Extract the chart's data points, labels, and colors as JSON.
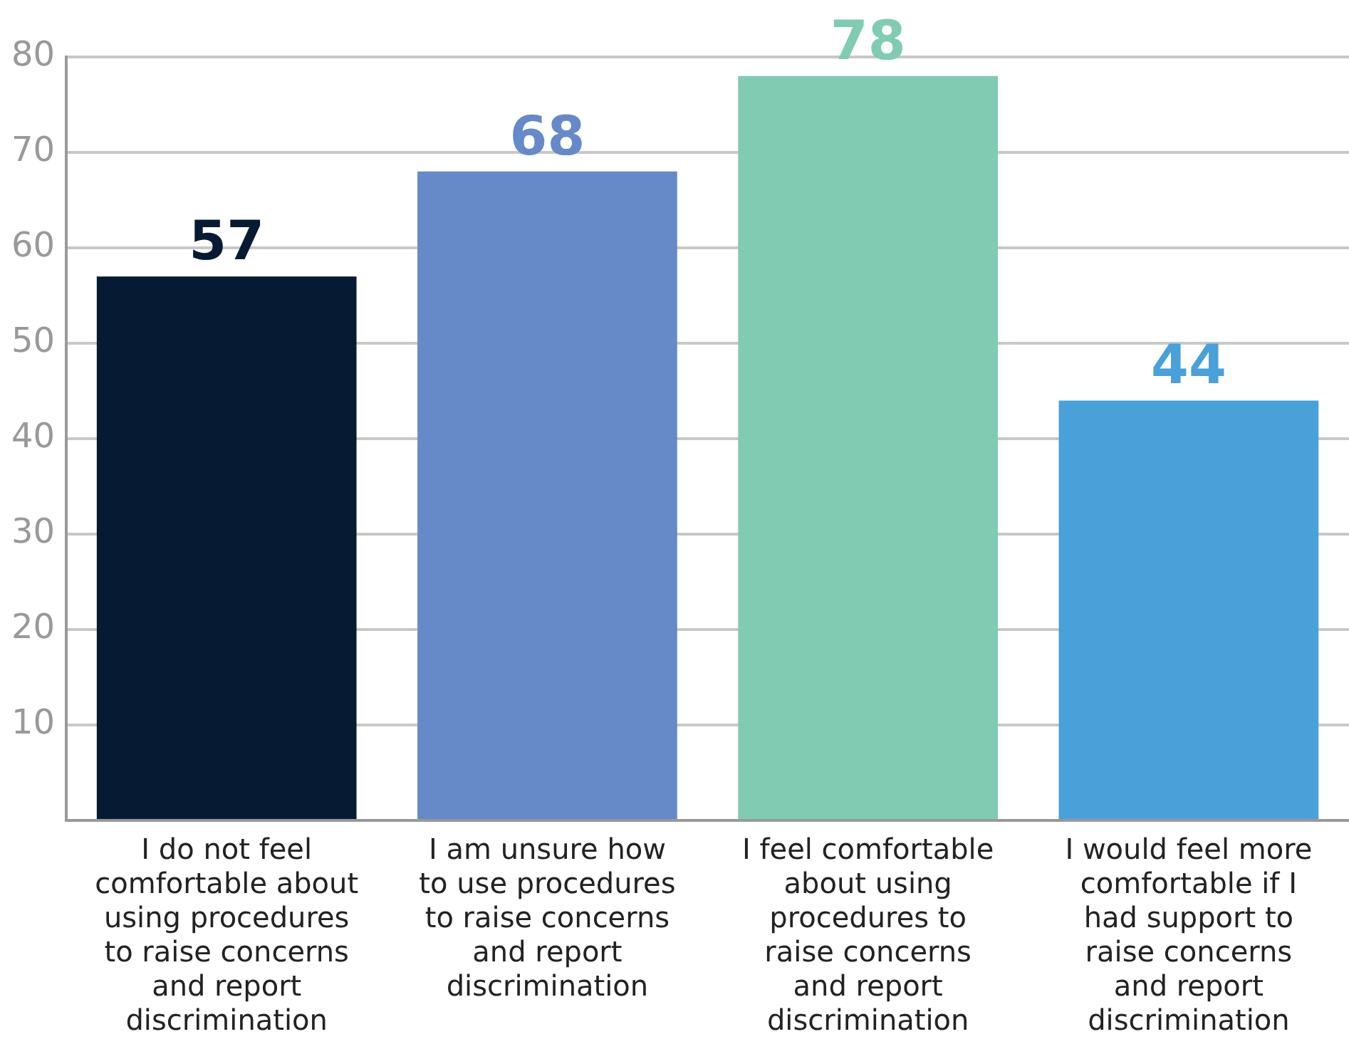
{
  "chart_data": {
    "type": "bar",
    "categories": [
      "I do not feel comfortable about using procedures to raise concerns and report discrimination",
      "I am unsure how to use procedures to raise concerns and report discrimination",
      "I feel comfortable about using procedures to raise concerns and report discrimination",
      "I would feel more comfortable if I had support to raise concerns and report discrimination"
    ],
    "values": [
      57,
      68,
      78,
      44
    ],
    "colors": [
      "#061a33",
      "#6689c8",
      "#80cbb1",
      "#4aa0d8"
    ],
    "ylim": [
      0,
      80
    ],
    "yticks": [
      {
        "value": 0,
        "label": null
      },
      10,
      20,
      30,
      40,
      50,
      60,
      70,
      80
    ],
    "grid": "y",
    "legend": false,
    "data_labels": true
  }
}
